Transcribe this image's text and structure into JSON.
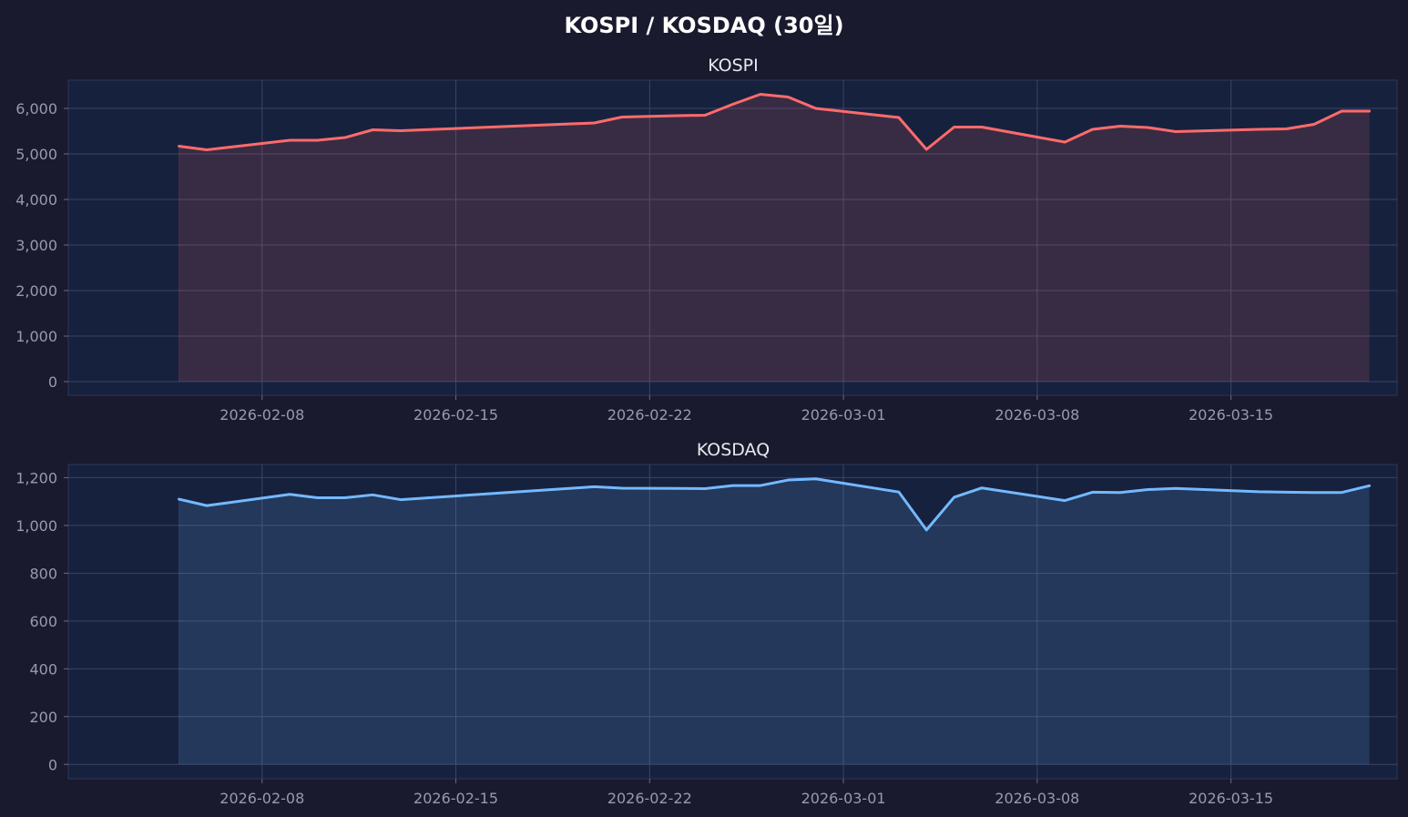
{
  "figure": {
    "title": "KOSPI / KOSDAQ (30일)",
    "background": "#1a1a2e",
    "plot_background": "#16213e",
    "grid_color": "#3a4466"
  },
  "chart_data": [
    {
      "type": "area",
      "title": "KOSPI",
      "color": "#ff6b6b",
      "fill_color": "rgba(255,107,107,0.15)",
      "grid": true,
      "xlim": [
        "2026-02-01",
        "2026-03-21"
      ],
      "ylim": [
        -300,
        6620
      ],
      "x_ticks": [
        "2026-02-08",
        "2026-02-15",
        "2026-02-22",
        "2026-03-01",
        "2026-03-08",
        "2026-03-15"
      ],
      "y_ticks": [
        0,
        1000,
        2000,
        3000,
        4000,
        5000,
        6000
      ],
      "y_tick_labels": [
        "0",
        "1,000",
        "2,000",
        "3,000",
        "4,000",
        "5,000",
        "6,000"
      ],
      "x": [
        "2026-02-05",
        "2026-02-06",
        "2026-02-09",
        "2026-02-10",
        "2026-02-11",
        "2026-02-12",
        "2026-02-13",
        "2026-02-20",
        "2026-02-21",
        "2026-02-23",
        "2026-02-24",
        "2026-02-25",
        "2026-02-26",
        "2026-02-27",
        "2026-02-28",
        "2026-03-03",
        "2026-03-04",
        "2026-03-05",
        "2026-03-06",
        "2026-03-09",
        "2026-03-10",
        "2026-03-11",
        "2026-03-12",
        "2026-03-13",
        "2026-03-16",
        "2026-03-17",
        "2026-03-18",
        "2026-03-19",
        "2026-03-20"
      ],
      "values": [
        5170,
        5090,
        5300,
        5300,
        5360,
        5530,
        5510,
        5680,
        5810,
        5840,
        5850,
        6090,
        6310,
        6250,
        6000,
        5800,
        5100,
        5590,
        5590,
        5260,
        5540,
        5610,
        5580,
        5490,
        5540,
        5550,
        5650,
        5940,
        5940
      ]
    },
    {
      "type": "area",
      "title": "KOSDAQ",
      "color": "#74b9ff",
      "fill_color": "rgba(116,185,255,0.15)",
      "grid": true,
      "xlim": [
        "2026-02-01",
        "2026-03-21"
      ],
      "ylim": [
        -60,
        1255
      ],
      "x_ticks": [
        "2026-02-08",
        "2026-02-15",
        "2026-02-22",
        "2026-03-01",
        "2026-03-08",
        "2026-03-15"
      ],
      "y_ticks": [
        0,
        200,
        400,
        600,
        800,
        1000,
        1200
      ],
      "y_tick_labels": [
        "0",
        "200",
        "400",
        "600",
        "800",
        "1,000",
        "1,200"
      ],
      "x": [
        "2026-02-05",
        "2026-02-06",
        "2026-02-09",
        "2026-02-10",
        "2026-02-11",
        "2026-02-12",
        "2026-02-13",
        "2026-02-20",
        "2026-02-21",
        "2026-02-23",
        "2026-02-24",
        "2026-02-25",
        "2026-02-26",
        "2026-02-27",
        "2026-02-28",
        "2026-03-03",
        "2026-03-04",
        "2026-03-05",
        "2026-03-06",
        "2026-03-09",
        "2026-03-10",
        "2026-03-11",
        "2026-03-12",
        "2026-03-13",
        "2026-03-16",
        "2026-03-17",
        "2026-03-18",
        "2026-03-19",
        "2026-03-20"
      ],
      "values": [
        1110,
        1083,
        1130,
        1116,
        1116,
        1128,
        1108,
        1162,
        1156,
        1155,
        1154,
        1167,
        1167,
        1190,
        1195,
        1140,
        981,
        1118,
        1157,
        1104,
        1139,
        1138,
        1150,
        1155,
        1141,
        1139,
        1138,
        1138,
        1166
      ]
    }
  ]
}
